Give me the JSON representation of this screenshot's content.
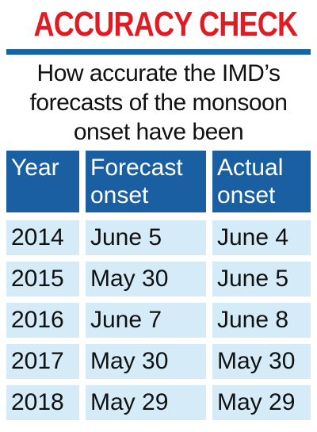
{
  "headline": "ACCURACY CHECK",
  "subtitle": "How accurate the IMD’s forecasts of the monsoon onset have been",
  "chart_data": {
    "type": "table",
    "columns": [
      "Year",
      "Forecast onset",
      "Actual onset"
    ],
    "rows": [
      [
        "2014",
        "June 5",
        "June 4"
      ],
      [
        "2015",
        "May 30",
        "June 5"
      ],
      [
        "2016",
        "June 7",
        "June 8"
      ],
      [
        "2017",
        "May 30",
        "May 30"
      ],
      [
        "2018",
        "May 29",
        "May 29"
      ]
    ]
  },
  "colors": {
    "headline": "#e21b23",
    "header_bg": "#1b5fa3",
    "row_bg": "#d5ecf8",
    "rule": "#1565a6"
  }
}
